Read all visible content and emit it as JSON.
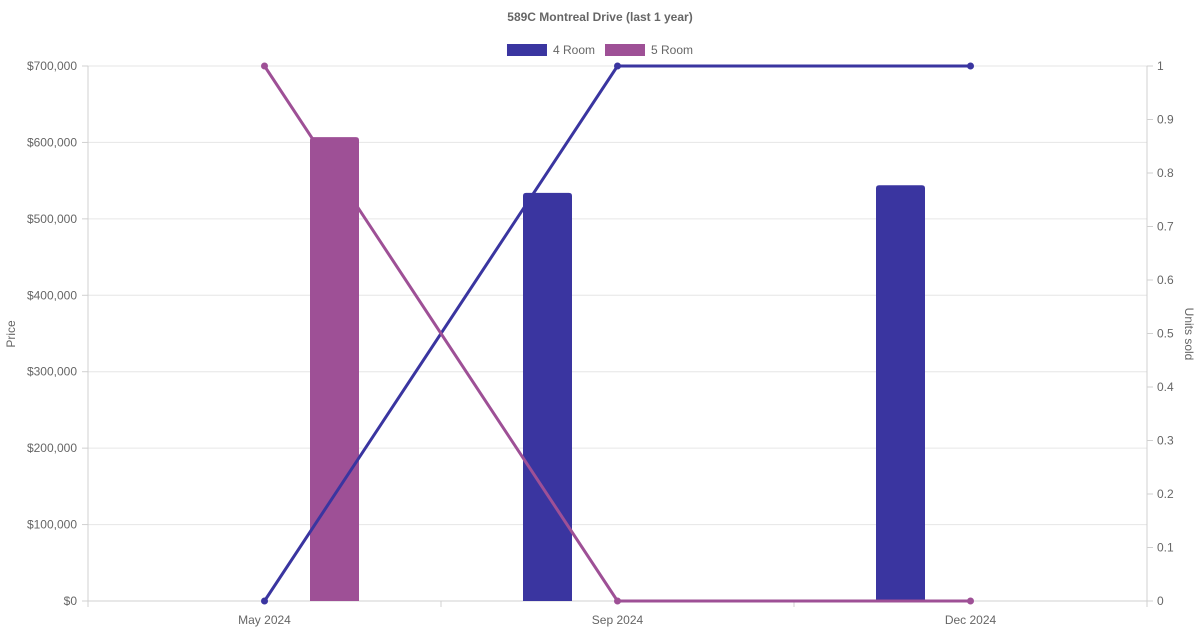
{
  "chart_data": {
    "type": "bar",
    "title": "589C Montreal Drive (last 1 year)",
    "categories": [
      "May 2024",
      "Sep 2024",
      "Dec 2024"
    ],
    "y_left": {
      "label": "Price",
      "ylim": [
        0,
        700000
      ],
      "ticks": [
        0,
        100000,
        200000,
        300000,
        400000,
        500000,
        600000,
        700000
      ],
      "tick_labels": [
        "$0",
        "$100,000",
        "$200,000",
        "$300,000",
        "$400,000",
        "$500,000",
        "$600,000",
        "$700,000"
      ]
    },
    "y_right": {
      "label": "Units sold",
      "ylim": [
        0,
        1
      ],
      "ticks": [
        0,
        0.1,
        0.2,
        0.3,
        0.4,
        0.5,
        0.6,
        0.7,
        0.8,
        0.9,
        1
      ],
      "tick_labels": [
        "0",
        "0.1",
        "0.2",
        "0.3",
        "0.4",
        "0.5",
        "0.6",
        "0.7",
        "0.8",
        "0.9",
        "1"
      ]
    },
    "series": [
      {
        "name": "4 Room",
        "color": "#3a35a0",
        "price": [
          null,
          534000,
          544000
        ],
        "units_sold": [
          0,
          1,
          1
        ]
      },
      {
        "name": "5 Room",
        "color": "#9e5096",
        "price": [
          607000,
          null,
          null
        ],
        "units_sold": [
          1,
          0,
          0
        ]
      }
    ],
    "legend": "top-center",
    "grid": true
  }
}
